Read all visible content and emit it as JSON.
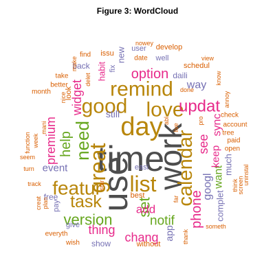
{
  "figure": {
    "title": "Figure 3: WordCloud"
  },
  "colors": {
    "gray": "#4d4d4d",
    "orange": "#d95f02",
    "purple": "#7570b3",
    "magenta": "#e7298a",
    "green": "#66a61e",
    "gold": "#b8860b"
  },
  "chart_data": {
    "type": "wordcloud",
    "title": "Figure 3: WordCloud",
    "words": [
      {
        "text": "time",
        "weight": 52,
        "color": "gray"
      },
      {
        "text": "use",
        "weight": 50,
        "color": "gray"
      },
      {
        "text": "work",
        "weight": 46,
        "color": "gray"
      },
      {
        "text": "day",
        "weight": 38,
        "color": "gold"
      },
      {
        "text": "great",
        "weight": 32,
        "color": "gold"
      },
      {
        "text": "list",
        "weight": 32,
        "color": "gold"
      },
      {
        "text": "good",
        "weight": 30,
        "color": "gold"
      },
      {
        "text": "love",
        "weight": 30,
        "color": "gold"
      },
      {
        "text": "remind",
        "weight": 30,
        "color": "gold"
      },
      {
        "text": "calendar",
        "weight": 29,
        "color": "gold"
      },
      {
        "text": "featur",
        "weight": 28,
        "color": "gold"
      },
      {
        "text": "need",
        "weight": 26,
        "color": "green"
      },
      {
        "text": "task",
        "weight": 25,
        "color": "gold"
      },
      {
        "text": "updat",
        "weight": 24,
        "color": "magenta"
      },
      {
        "text": "version",
        "weight": 22,
        "color": "green"
      },
      {
        "text": "set",
        "weight": 22,
        "color": "green"
      },
      {
        "text": "option",
        "weight": 20,
        "color": "magenta"
      },
      {
        "text": "help",
        "weight": 20,
        "color": "green"
      },
      {
        "text": "phone",
        "weight": 20,
        "color": "magenta"
      },
      {
        "text": "notif",
        "weight": 19,
        "color": "green"
      },
      {
        "text": "premium",
        "weight": 18,
        "color": "magenta"
      },
      {
        "text": "widget",
        "weight": 18,
        "color": "magenta"
      },
      {
        "text": "thing",
        "weight": 18,
        "color": "magenta"
      },
      {
        "text": "chang",
        "weight": 18,
        "color": "magenta"
      },
      {
        "text": "see",
        "weight": 18,
        "color": "magenta"
      },
      {
        "text": "add",
        "weight": 17,
        "color": "magenta"
      },
      {
        "text": "way",
        "weight": 16,
        "color": "purple"
      },
      {
        "text": "googl",
        "weight": 16,
        "color": "purple"
      },
      {
        "text": "want",
        "weight": 16,
        "color": "green"
      },
      {
        "text": "sync",
        "weight": 16,
        "color": "magenta"
      },
      {
        "text": "keep",
        "weight": 15,
        "color": "magenta"
      },
      {
        "text": "event",
        "weight": 15,
        "color": "purple"
      },
      {
        "text": "still",
        "weight": 14,
        "color": "purple"
      },
      {
        "text": "app",
        "weight": 14,
        "color": "purple"
      },
      {
        "text": "much",
        "weight": 13,
        "color": "purple"
      },
      {
        "text": "complet",
        "weight": 13,
        "color": "purple"
      },
      {
        "text": "habit",
        "weight": 13,
        "color": "magenta"
      },
      {
        "text": "new",
        "weight": 13,
        "color": "purple"
      },
      {
        "text": "show",
        "weight": 12,
        "color": "purple"
      },
      {
        "text": "free",
        "weight": 12,
        "color": "purple"
      },
      {
        "text": "back",
        "weight": 12,
        "color": "purple"
      },
      {
        "text": "daili",
        "weight": 12,
        "color": "purple"
      },
      {
        "text": "user",
        "weight": 11,
        "color": "purple"
      },
      {
        "text": "issu",
        "weight": 11,
        "color": "orange"
      },
      {
        "text": "easi",
        "weight": 11,
        "color": "purple"
      },
      {
        "text": "best",
        "weight": 11,
        "color": "orange"
      },
      {
        "text": "look",
        "weight": 11,
        "color": "orange"
      },
      {
        "text": "give",
        "weight": 11,
        "color": "purple"
      },
      {
        "text": "pay",
        "weight": 11,
        "color": "purple"
      },
      {
        "text": "develop",
        "weight": 11,
        "color": "orange"
      },
      {
        "text": "schedul",
        "weight": 11,
        "color": "orange"
      },
      {
        "text": "well",
        "weight": 11,
        "color": "purple"
      },
      {
        "text": "fix",
        "weight": 11,
        "color": "purple"
      },
      {
        "text": "without",
        "weight": 11,
        "color": "orange"
      },
      {
        "text": "wish",
        "weight": 10,
        "color": "orange"
      },
      {
        "text": "everyth",
        "weight": 10,
        "color": "orange"
      },
      {
        "text": "account",
        "weight": 10,
        "color": "orange"
      },
      {
        "text": "check",
        "weight": 10,
        "color": "orange"
      },
      {
        "text": "tree",
        "weight": 10,
        "color": "orange"
      },
      {
        "text": "paid",
        "weight": 10,
        "color": "orange"
      },
      {
        "text": "open",
        "weight": 10,
        "color": "orange"
      },
      {
        "text": "better",
        "weight": 10,
        "color": "orange"
      },
      {
        "text": "month",
        "weight": 10,
        "color": "orange"
      },
      {
        "text": "take",
        "weight": 10,
        "color": "orange"
      },
      {
        "text": "find",
        "weight": 10,
        "color": "orange"
      },
      {
        "text": "date",
        "weight": 10,
        "color": "orange"
      },
      {
        "text": "view",
        "weight": 9,
        "color": "orange"
      },
      {
        "text": "nowey",
        "weight": 9,
        "color": "orange"
      },
      {
        "text": "make",
        "weight": 9,
        "color": "orange"
      },
      {
        "text": "nice",
        "weight": 9,
        "color": "orange"
      },
      {
        "text": "delet",
        "weight": 9,
        "color": "orange"
      },
      {
        "text": "done",
        "weight": 9,
        "color": "orange"
      },
      {
        "text": "know",
        "weight": 9,
        "color": "orange"
      },
      {
        "text": "annoy",
        "weight": 9,
        "color": "orange"
      },
      {
        "text": "function",
        "weight": 9,
        "color": "orange"
      },
      {
        "text": "week",
        "weight": 9,
        "color": "orange"
      },
      {
        "text": "mani",
        "weight": 9,
        "color": "orange"
      },
      {
        "text": "seem",
        "weight": 9,
        "color": "orange"
      },
      {
        "text": "turn",
        "weight": 9,
        "color": "orange"
      },
      {
        "text": "track",
        "weight": 9,
        "color": "orange"
      },
      {
        "text": "creat",
        "weight": 9,
        "color": "orange"
      },
      {
        "text": "plan",
        "weight": 9,
        "color": "orange"
      },
      {
        "text": "star",
        "weight": 9,
        "color": "orange"
      },
      {
        "text": "abl",
        "weight": 9,
        "color": "orange"
      },
      {
        "text": "live",
        "weight": 9,
        "color": "orange"
      },
      {
        "text": "pro",
        "weight": 9,
        "color": "orange"
      },
      {
        "text": "think",
        "weight": 9,
        "color": "orange"
      },
      {
        "text": "screen",
        "weight": 9,
        "color": "orange"
      },
      {
        "text": "uninstal",
        "weight": 9,
        "color": "orange"
      },
      {
        "text": "someth",
        "weight": 9,
        "color": "orange"
      },
      {
        "text": "far",
        "weight": 9,
        "color": "orange"
      },
      {
        "text": "thank",
        "weight": 9,
        "color": "orange"
      }
    ]
  }
}
